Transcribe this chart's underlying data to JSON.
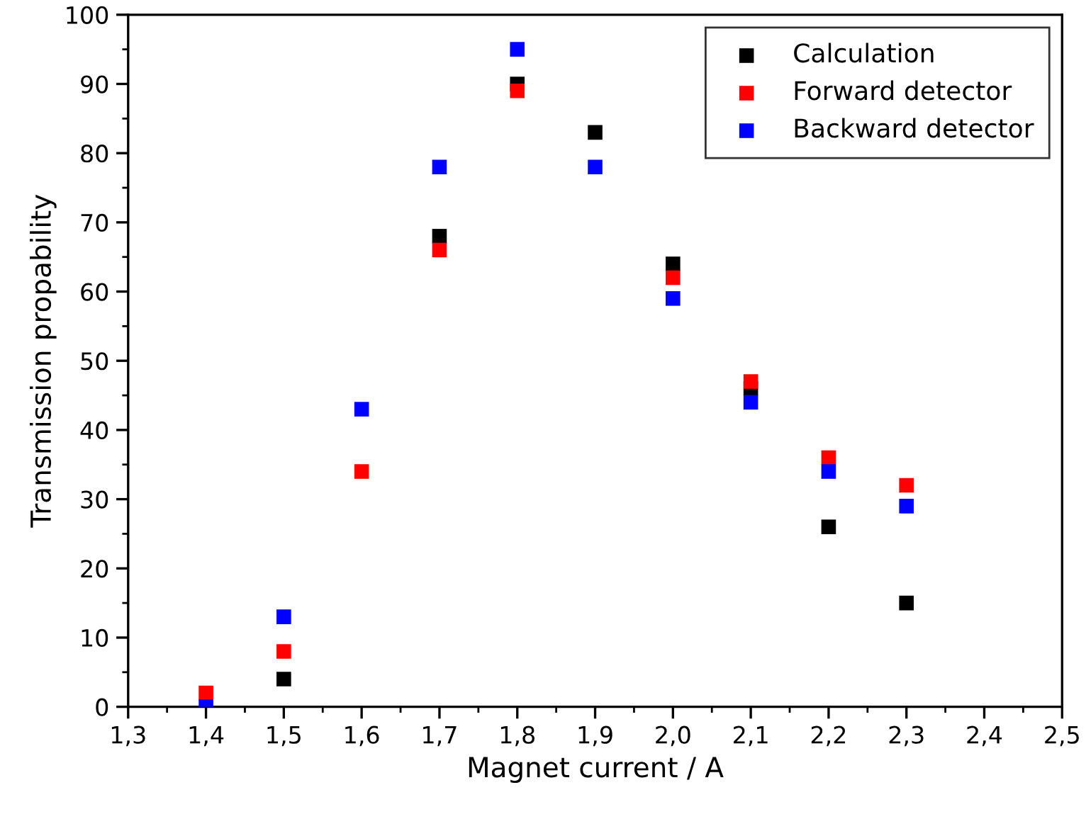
{
  "chart_data": {
    "type": "scatter",
    "xlabel": "Magnet current / A",
    "ylabel": "Transmission propability",
    "x": [
      1.4,
      1.5,
      1.6,
      1.7,
      1.8,
      1.9,
      2.0,
      2.1,
      2.2,
      2.3
    ],
    "series": [
      {
        "name": "Calculation",
        "color": "#000000",
        "values": [
          null,
          4,
          null,
          68,
          90,
          83,
          64,
          46,
          26,
          15
        ]
      },
      {
        "name": "Forward detector",
        "color": "#ff0000",
        "values": [
          2,
          8,
          34,
          66,
          89,
          null,
          62,
          47,
          36,
          32
        ]
      },
      {
        "name": "Backward detector",
        "color": "#0000ff",
        "values": [
          0,
          13,
          43,
          78,
          95,
          78,
          59,
          44,
          34,
          29
        ]
      }
    ],
    "xlim": [
      1.3,
      2.5
    ],
    "xticks": [
      {
        "value": 1.3,
        "label": "1,3"
      },
      {
        "value": 1.4,
        "label": "1,4"
      },
      {
        "value": 1.5,
        "label": "1,5"
      },
      {
        "value": 1.6,
        "label": "1,6"
      },
      {
        "value": 1.7,
        "label": "1,7"
      },
      {
        "value": 1.8,
        "label": "1,8"
      },
      {
        "value": 1.9,
        "label": "1,9"
      },
      {
        "value": 2.0,
        "label": "2,0"
      },
      {
        "value": 2.1,
        "label": "2,1"
      },
      {
        "value": 2.2,
        "label": "2,2"
      },
      {
        "value": 2.3,
        "label": "2,3"
      },
      {
        "value": 2.4,
        "label": "2,4"
      },
      {
        "value": 2.5,
        "label": "2,5"
      }
    ],
    "ylim": [
      0,
      100
    ],
    "yticks": [
      0,
      10,
      20,
      30,
      40,
      50,
      60,
      70,
      80,
      90,
      100
    ],
    "marker": "square",
    "legend": "top right",
    "grid": false
  }
}
